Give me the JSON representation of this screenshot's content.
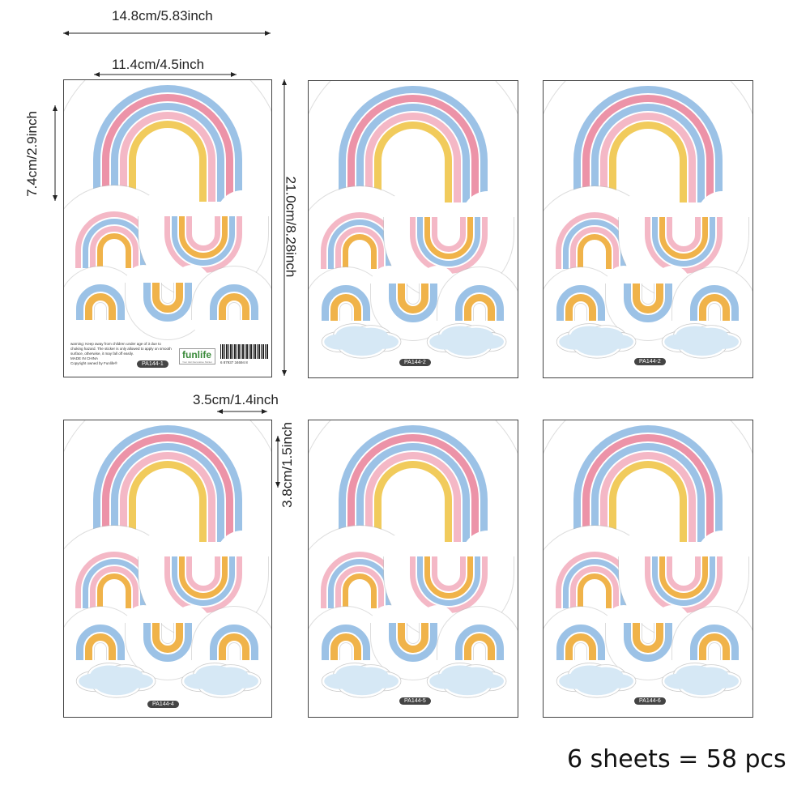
{
  "dimensions": {
    "full_width": "14.8cm/5.83inch",
    "art_width": "11.4cm/4.5inch",
    "rainbow_height": "7.4cm/2.9inch",
    "sheet_height": "21.0cm/8.28inch",
    "small_width": "3.5cm/1.4inch",
    "small_height": "3.8cm/1.5inch"
  },
  "sheets": [
    {
      "code": "PA144-1"
    },
    {
      "code": "PA144-2"
    },
    {
      "code": "PA144-2"
    },
    {
      "code": "PA144-4"
    },
    {
      "code": "PA144-5"
    },
    {
      "code": "PA144-6"
    }
  ],
  "label": {
    "warning": "warning: Keep away from children under age of 3 due to choking hazard. The sticker is only allowed to apply on smooth surface, otherwise, it may fall off easily.",
    "made_in": "MADE IN CHINA",
    "copyright": "Copyright owned by Funlife®",
    "logo": "funlife",
    "logo_tagline": "Your Idol Decorative Sticker",
    "barcode_number": "6 87937 34694 8"
  },
  "summary": "6 sheets = 58 pcs",
  "colors": {
    "blue": "#9cc2e6",
    "pink": "#f4b8c6",
    "red_pink": "#ec93a8",
    "yellow": "#f1cb5c",
    "orange": "#f0b34a",
    "cloud": "#d6e8f5"
  }
}
